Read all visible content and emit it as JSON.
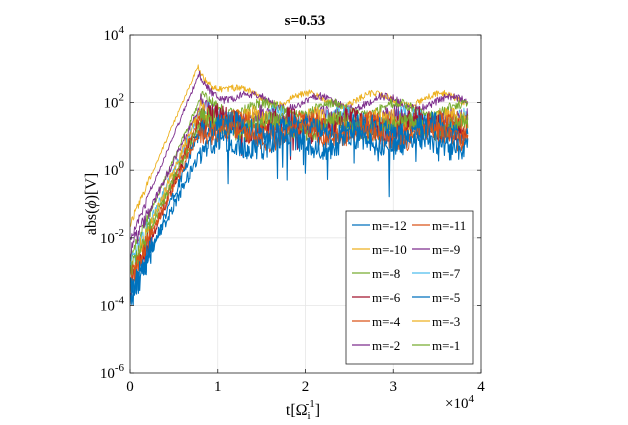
{
  "chart_data": {
    "type": "line",
    "title": "s=0.53",
    "xlabel": "t[Ω_i^-1]",
    "xlabel_parts": {
      "base": "t[Ω",
      "sub": "i",
      "sup": "-1",
      "close": "]"
    },
    "ylabel": "abs(ϕ)[V]",
    "ylabel_parts": {
      "pre": "abs(",
      "sym": "ϕ",
      "post": ")[V]"
    },
    "x_scale_base": "×10",
    "x_scale_exp": "4",
    "xlim": [
      0,
      40000
    ],
    "ylim_log10": [
      -6,
      4
    ],
    "yscale": "log",
    "grid": true,
    "xticks": [
      {
        "value": 0,
        "label": "0"
      },
      {
        "value": 10000,
        "label": "1"
      },
      {
        "value": 20000,
        "label": "2"
      },
      {
        "value": 30000,
        "label": "3"
      },
      {
        "value": 40000,
        "label": "4"
      }
    ],
    "yticks": [
      {
        "exp": -6,
        "base": "10",
        "sup": "-6"
      },
      {
        "exp": -4,
        "base": "10",
        "sup": "-4"
      },
      {
        "exp": -2,
        "base": "10",
        "sup": "-2"
      },
      {
        "exp": 0,
        "base": "10",
        "sup": "0"
      },
      {
        "exp": 2,
        "base": "10",
        "sup": "2"
      },
      {
        "exp": 4,
        "base": "10",
        "sup": "4"
      }
    ],
    "legend_position": "bottom-right",
    "series": [
      {
        "name": "m=-12",
        "color": "#0072BD",
        "t0": 0,
        "start": -3.6,
        "peak_t": 8000,
        "peak": 0.5,
        "sat": 0.8,
        "noise": 0.35,
        "seed": 12
      },
      {
        "name": "m=-11",
        "color": "#D95319",
        "t0": 0,
        "start": -3.3,
        "peak_t": 8000,
        "peak": 1.2,
        "sat": 1.0,
        "noise": 0.3,
        "seed": 11
      },
      {
        "name": "m=-10",
        "color": "#EDB120",
        "t0": 0,
        "start": -1.6,
        "peak_t": 7800,
        "peak": 3.1,
        "sat": 2.1,
        "noise": 0.1,
        "seed": 10
      },
      {
        "name": "m=-9",
        "color": "#7E2F8E",
        "t0": 0,
        "start": -2.1,
        "peak_t": 7800,
        "peak": 2.8,
        "sat": 2.0,
        "noise": 0.12,
        "seed": 9
      },
      {
        "name": "m=-8",
        "color": "#77AC30",
        "t0": 0,
        "start": -2.6,
        "peak_t": 8000,
        "peak": 2.1,
        "sat": 1.8,
        "noise": 0.15,
        "seed": 8
      },
      {
        "name": "m=-7",
        "color": "#4DBEEE",
        "t0": 0,
        "start": -2.8,
        "peak_t": 8000,
        "peak": 1.7,
        "sat": 1.5,
        "noise": 0.25,
        "seed": 7
      },
      {
        "name": "m=-6",
        "color": "#A2142F",
        "t0": 0,
        "start": -3.5,
        "peak_t": 8000,
        "peak": 1.5,
        "sat": 1.3,
        "noise": 0.4,
        "seed": 6
      },
      {
        "name": "m=-5",
        "color": "#0072BD",
        "t0": 0,
        "start": -3.9,
        "peak_t": 8200,
        "peak": 1.3,
        "sat": 1.2,
        "noise": 0.35,
        "seed": 5
      },
      {
        "name": "m=-4",
        "color": "#D95319",
        "t0": 0,
        "start": -3.4,
        "peak_t": 8000,
        "peak": 1.6,
        "sat": 1.3,
        "noise": 0.3,
        "seed": 4
      },
      {
        "name": "m=-3",
        "color": "#EDB120",
        "t0": 0,
        "start": -3.0,
        "peak_t": 8000,
        "peak": 1.8,
        "sat": 1.4,
        "noise": 0.3,
        "seed": 3
      },
      {
        "name": "m=-2",
        "color": "#7E2F8E",
        "t0": 0,
        "start": -2.4,
        "peak_t": 8000,
        "peak": 1.9,
        "sat": 1.5,
        "noise": 0.25,
        "seed": 2
      },
      {
        "name": "m=-1",
        "color": "#77AC30",
        "t0": 0,
        "start": -3.0,
        "peak_t": 8000,
        "peak": 1.4,
        "sat": 1.3,
        "noise": 0.3,
        "seed": 1
      }
    ]
  }
}
